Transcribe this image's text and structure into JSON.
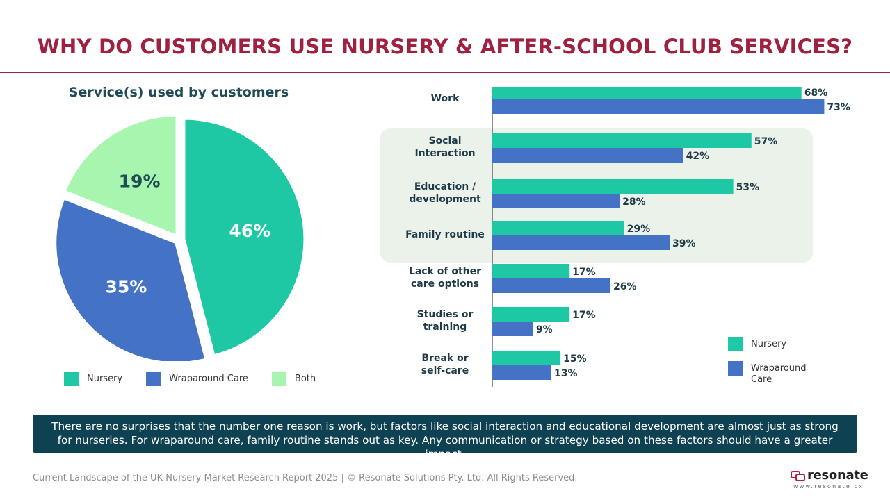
{
  "title": "WHY DO CUSTOMERS USE NURSERY & AFTER-SCHOOL CLUB SERVICES?",
  "colors": {
    "nursery": "#1fc8a4",
    "wraparound": "#4472c4",
    "both": "#a8f5b0",
    "title": "#a0203f",
    "callout_bg": "#0e4152"
  },
  "chart_data": [
    {
      "type": "pie",
      "title": "Service(s) used by customers",
      "labels": [
        "Nursery",
        "Wraparound Care",
        "Both"
      ],
      "values": [
        46,
        35,
        19
      ],
      "value_labels": [
        "46%",
        "35%",
        "19%"
      ],
      "legend": "bottom"
    },
    {
      "type": "bar",
      "orientation": "horizontal",
      "categories": [
        "Work",
        "Social Interaction",
        "Education / development",
        "Family routine",
        "Lack of other care options",
        "Studies or training",
        "Break or self-care"
      ],
      "category_lines": [
        [
          "Work"
        ],
        [
          "Social",
          "Interaction"
        ],
        [
          "Education /",
          "development"
        ],
        [
          "Family routine"
        ],
        [
          "Lack of other",
          "care options"
        ],
        [
          "Studies or",
          "training"
        ],
        [
          "Break or",
          "self-care"
        ]
      ],
      "series": [
        {
          "name": "Nursery",
          "values": [
            68,
            57,
            53,
            29,
            17,
            17,
            15
          ]
        },
        {
          "name": "Wraparound Care",
          "values": [
            73,
            42,
            28,
            39,
            26,
            9,
            13
          ]
        }
      ],
      "legend_lines": [
        [
          "Nursery"
        ],
        [
          "Wraparound",
          "Care"
        ]
      ],
      "highlighted_categories": [
        "Social Interaction",
        "Education / development",
        "Family routine"
      ],
      "xlim": [
        0,
        80
      ],
      "legend": "bottom-right"
    }
  ],
  "callout": "There are no surprises that the number one reason is work, but factors like social interaction and educational development are almost just as strong for nurseries. For wraparound care, family routine stands out as key. Any communication or strategy based on these factors should have a greater impact.",
  "footer": "Current Landscape of the UK Nursery Market Research Report 2025 | © Resonate Solutions Pty. Ltd. All Rights Reserved.",
  "logo": {
    "name": "resonate",
    "url": "www.resonate.cx"
  }
}
